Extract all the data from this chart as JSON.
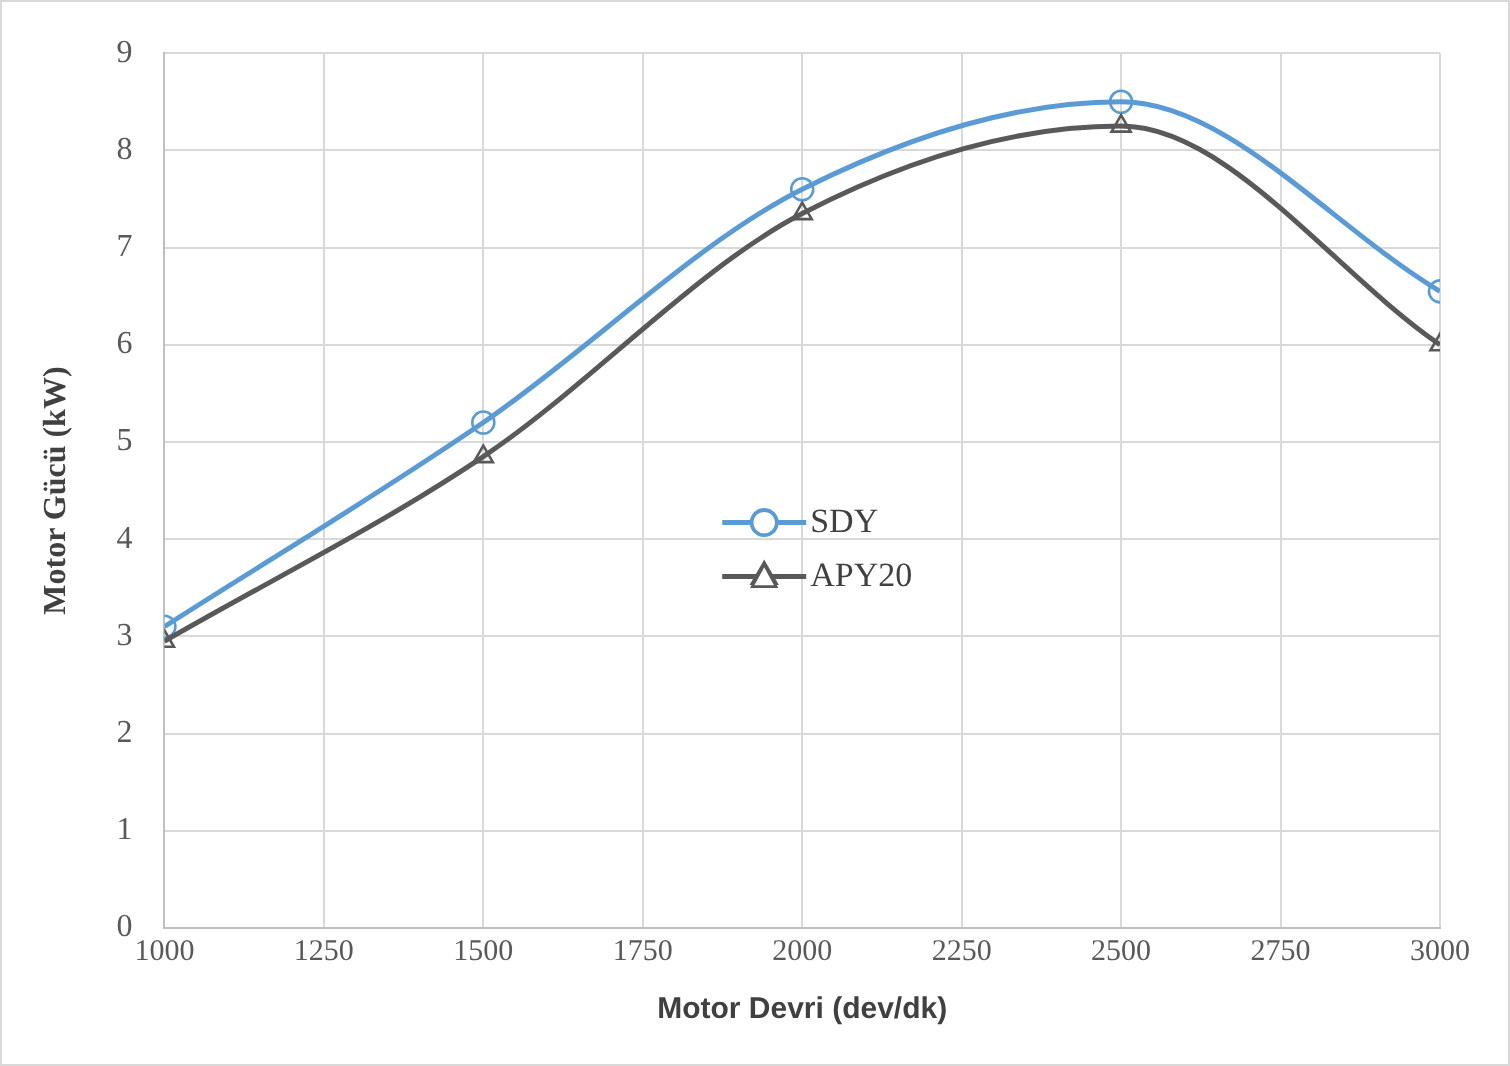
{
  "chart_data": {
    "type": "line",
    "xlabel": "Motor Devri (dev/dk)",
    "ylabel": "Motor Gücü (kW)",
    "x": [
      1000,
      1500,
      2000,
      2500,
      3000
    ],
    "series": [
      {
        "name": "SDY",
        "color": "#5b9bd5",
        "marker": "circle",
        "values": [
          3.1,
          5.2,
          7.6,
          8.5,
          6.55
        ]
      },
      {
        "name": "APY20",
        "color": "#595959",
        "marker": "triangle",
        "values": [
          2.95,
          4.85,
          7.35,
          8.25,
          6.0
        ]
      }
    ],
    "xlim": [
      1000,
      3000
    ],
    "xticks": [
      1000,
      1250,
      1500,
      1750,
      2000,
      2250,
      2500,
      2750,
      3000
    ],
    "ylim": [
      0,
      9
    ],
    "yticks": [
      0,
      1,
      2,
      3,
      4,
      5,
      6,
      7,
      8,
      9
    ],
    "grid": true,
    "legend": "center"
  }
}
